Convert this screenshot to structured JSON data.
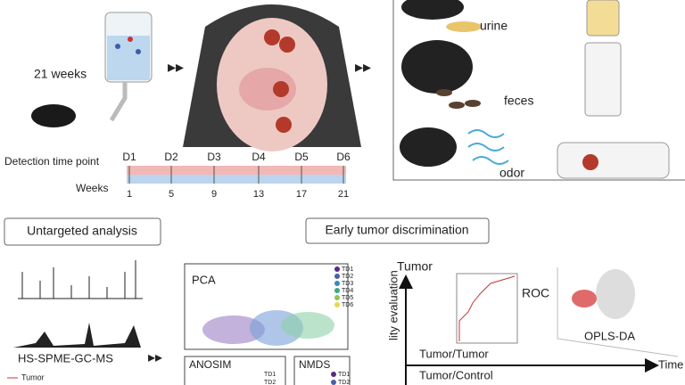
{
  "intake": {
    "duration": "21 weeks"
  },
  "samples": {
    "urine": "urine",
    "feces": "feces",
    "odor": "odor"
  },
  "timeline": {
    "detection_label": "Detection time point",
    "days": [
      "D1",
      "D2",
      "D3",
      "D4",
      "D5",
      "D6"
    ],
    "weeks_label": "Weeks",
    "weeks": [
      "1",
      "5",
      "9",
      "13",
      "17",
      "21"
    ]
  },
  "untargeted": {
    "title": "Untargeted analysis",
    "method": "HS-SPME-GC-MS",
    "legend": "Tumor"
  },
  "pca": {
    "title": "PCA",
    "legend": [
      "TD1",
      "TD2",
      "TD3",
      "TD4",
      "TD5",
      "TD6"
    ]
  },
  "anosim": {
    "title": "ANOSIM",
    "legend": [
      "TD1",
      "TD2"
    ]
  },
  "nmds": {
    "title": "NMDS",
    "legend": [
      "TD1",
      "TD2"
    ]
  },
  "discrimination": {
    "title": "Early tumor discrimination",
    "y_axis_top": "Tumor",
    "y_axis_label": "lity evaluation",
    "x_axis": "Time",
    "roc": "ROC",
    "oplsda": "OPLS-DA",
    "row1": "Tumor/Tumor",
    "row2": "Tumor/Control"
  }
}
